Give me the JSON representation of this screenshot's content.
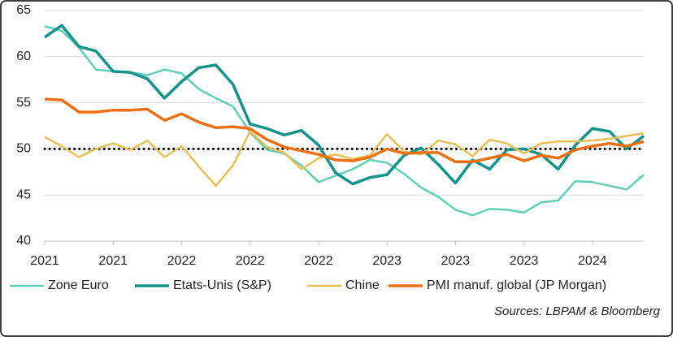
{
  "chart_data": {
    "type": "line",
    "categories": [
      "2021",
      null,
      null,
      null,
      "2021",
      null,
      null,
      null,
      "2022",
      null,
      null,
      null,
      "2022",
      null,
      null,
      null,
      "2022",
      null,
      null,
      null,
      "2023",
      null,
      null,
      null,
      "2023",
      null,
      null,
      null,
      "2023",
      null,
      null,
      null,
      "2024",
      null,
      null,
      null
    ],
    "series": [
      {
        "name": "Zone Euro",
        "color": "#5fd0b3",
        "values": [
          63.3,
          62.8,
          61.0,
          58.6,
          58.4,
          58.3,
          58.0,
          58.6,
          58.2,
          56.5,
          55.5,
          54.6,
          51.8,
          49.9,
          49.5,
          48.2,
          46.4,
          47.1,
          47.8,
          48.8,
          48.5,
          47.3,
          45.8,
          44.8,
          43.4,
          42.8,
          43.5,
          43.4,
          43.1,
          44.2,
          44.4,
          46.5,
          46.4,
          46.0,
          45.6,
          47.2
        ]
      },
      {
        "name": "Etats-Unis (S&P)",
        "color": "#12948c",
        "values": [
          62.1,
          63.4,
          61.1,
          60.6,
          58.4,
          58.3,
          57.6,
          55.5,
          57.3,
          58.8,
          59.1,
          57.0,
          52.7,
          52.2,
          51.5,
          52.0,
          50.4,
          47.4,
          46.2,
          46.9,
          47.2,
          49.3,
          50.1,
          48.3,
          46.3,
          48.8,
          47.8,
          49.9,
          50.0,
          49.4,
          47.8,
          50.4,
          52.2,
          51.9,
          50.0,
          51.4
        ]
      },
      {
        "name": "Chine",
        "color": "#e8bf57",
        "values": [
          51.3,
          50.3,
          49.1,
          50.0,
          50.6,
          49.9,
          50.9,
          49.1,
          50.3,
          48.1,
          46.0,
          48.2,
          51.9,
          50.2,
          49.6,
          47.8,
          49.0,
          49.4,
          48.9,
          49.3,
          51.6,
          49.7,
          49.4,
          50.9,
          50.5,
          49.2,
          51.0,
          50.6,
          49.5,
          50.6,
          50.8,
          50.8,
          50.9,
          51.1,
          51.4,
          51.7
        ]
      },
      {
        "name": "PMI manuf. global (JP Morgan)",
        "color": "#ed7014",
        "values": [
          55.4,
          55.3,
          54.0,
          54.0,
          54.2,
          54.2,
          54.3,
          53.1,
          53.8,
          52.9,
          52.3,
          52.4,
          52.2,
          51.0,
          50.2,
          49.8,
          49.4,
          48.8,
          48.7,
          49.1,
          50.0,
          49.5,
          49.6,
          49.6,
          48.6,
          48.6,
          49.0,
          49.4,
          48.7,
          49.3,
          49.0,
          49.9,
          50.3,
          50.6,
          50.3,
          50.8
        ]
      }
    ],
    "ylim": [
      40,
      65
    ],
    "yticks": [
      40,
      45,
      50,
      55,
      60,
      65
    ],
    "grid": true,
    "reference_line": 50,
    "source": "Sources: LBPAM & Bloomberg"
  }
}
